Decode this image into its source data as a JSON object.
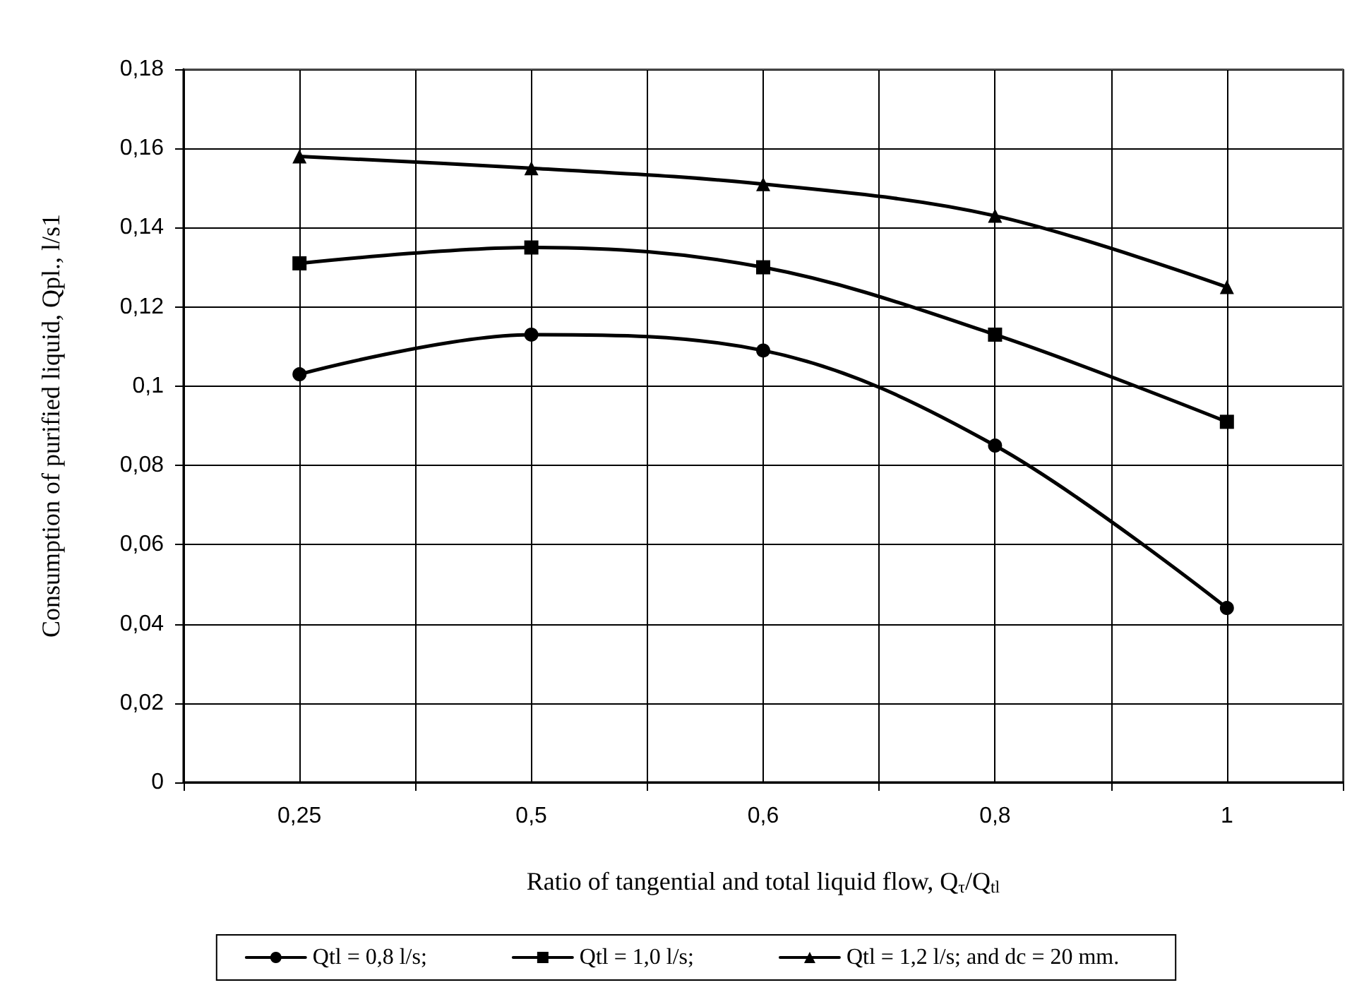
{
  "chart_data": {
    "type": "line",
    "xlabel": "Ratio of tangential and total liquid flow, Q$_{τ}$/Q$_{tl}$",
    "ylabel": "Consumption of purified liquid, Qpl., l/s1",
    "categories": [
      "0,25",
      "0,5",
      "0,6",
      "0,8",
      "1"
    ],
    "series": [
      {
        "name": "Qtl = 0,8 l/s;",
        "color": "#000000",
        "marker": "circle",
        "values": [
          0.103,
          0.113,
          0.109,
          0.085,
          0.044
        ]
      },
      {
        "name": "Qtl = 1,0 l/s;",
        "color": "#000000",
        "marker": "square",
        "values": [
          0.131,
          0.135,
          0.13,
          0.113,
          0.091
        ]
      },
      {
        "name": "Qtl = 1,2 l/s; and dc = 20 mm.",
        "color": "#000000",
        "marker": "triangle",
        "values": [
          0.158,
          0.155,
          0.151,
          0.143,
          0.125
        ]
      }
    ],
    "ylim": [
      0,
      0.18
    ],
    "yticks": [
      {
        "value": 0,
        "label": "0"
      },
      {
        "value": 0.02,
        "label": "0,02"
      },
      {
        "value": 0.04,
        "label": "0,04"
      },
      {
        "value": 0.06,
        "label": "0,06"
      },
      {
        "value": 0.08,
        "label": "0,08"
      },
      {
        "value": 0.1,
        "label": "0,1"
      },
      {
        "value": 0.12,
        "label": "0,12"
      },
      {
        "value": 0.14,
        "label": "0,14"
      },
      {
        "value": 0.16,
        "label": "0,16"
      },
      {
        "value": 0.18,
        "label": "0,18"
      }
    ],
    "grid": true,
    "legend": "bottom",
    "line_style": "solid"
  }
}
